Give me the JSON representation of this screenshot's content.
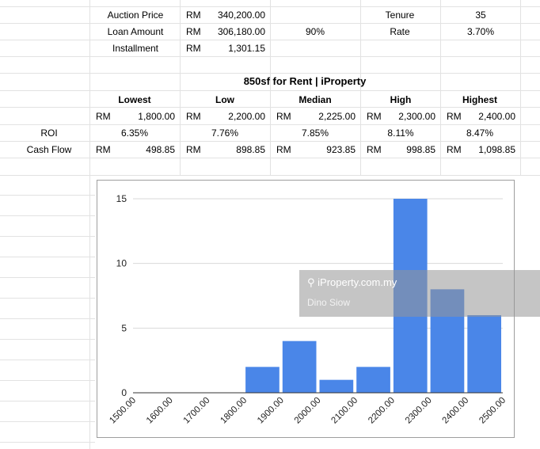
{
  "loan": {
    "auction_price_label": "Auction Price",
    "auction_price_cur": "RM",
    "auction_price": "340,200.00",
    "loan_amount_label": "Loan Amount",
    "loan_amount_cur": "RM",
    "loan_amount": "306,180.00",
    "loan_pct": "90%",
    "installment_label": "Installment",
    "installment_cur": "RM",
    "installment": "1,301.15",
    "tenure_label": "Tenure",
    "tenure": "35",
    "rate_label": "Rate",
    "rate": "3.70%"
  },
  "rent": {
    "title": "850sf for Rent | iProperty",
    "currency": "RM",
    "headers": [
      "Lowest",
      "Low",
      "Median",
      "High",
      "Highest"
    ],
    "rents": [
      "1,800.00",
      "2,200.00",
      "2,225.00",
      "2,300.00",
      "2,400.00"
    ],
    "roi_label": "ROI",
    "roi": [
      "6.35%",
      "7.76%",
      "7.85%",
      "8.11%",
      "8.47%"
    ],
    "cashflow_label": "Cash Flow",
    "cashflow": [
      "498.85",
      "898.85",
      "923.85",
      "998.85",
      "1,098.85"
    ]
  },
  "chart_data": {
    "type": "bar",
    "title": "",
    "xlabel": "",
    "ylabel": "",
    "categories": [
      "1500.00",
      "1600.00",
      "1700.00",
      "1800.00",
      "1900.00",
      "2000.00",
      "2100.00",
      "2200.00",
      "2300.00",
      "2400.00",
      "2500.00"
    ],
    "bins": [
      {
        "from": 1800,
        "to": 1900,
        "count": 2
      },
      {
        "from": 1900,
        "to": 2000,
        "count": 4
      },
      {
        "from": 2000,
        "to": 2100,
        "count": 1
      },
      {
        "from": 2100,
        "to": 2200,
        "count": 2
      },
      {
        "from": 2200,
        "to": 2300,
        "count": 15
      },
      {
        "from": 2300,
        "to": 2400,
        "count": 8
      },
      {
        "from": 2400,
        "to": 2500,
        "count": 6
      }
    ],
    "xlim": [
      1500,
      2500
    ],
    "ylim": [
      0,
      15
    ],
    "yticks": [
      "0",
      "5",
      "10",
      "15"
    ],
    "grid": true,
    "bar_color": "#4a86e8"
  },
  "watermark": {
    "logo_text": "⚲ iProperty.com.my",
    "author": "Dino Siow"
  }
}
